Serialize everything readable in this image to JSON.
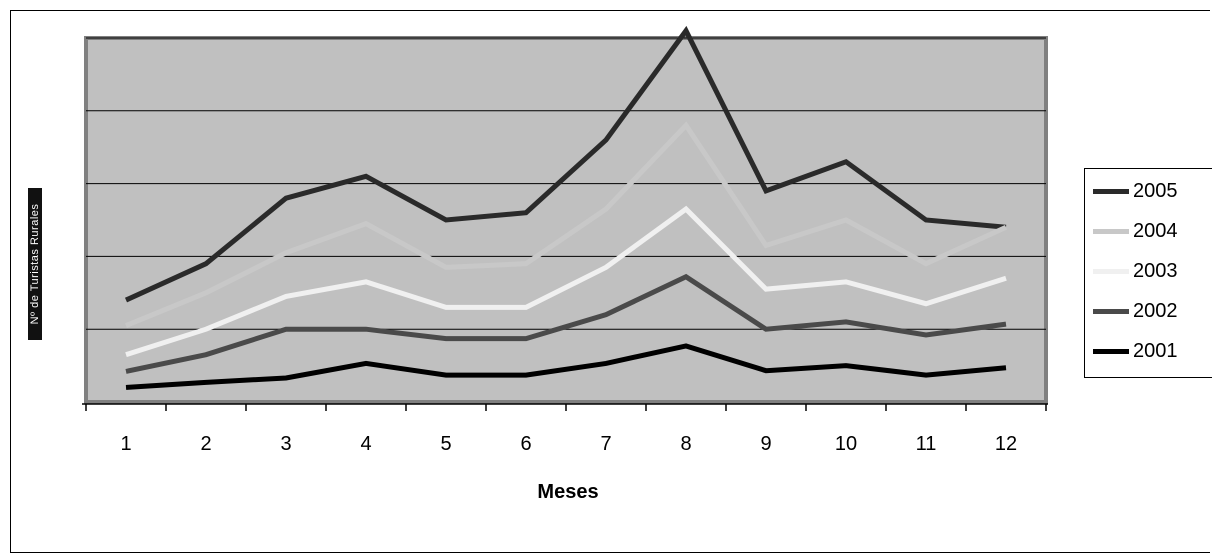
{
  "chart_data": {
    "type": "line",
    "xlabel": "Meses",
    "ylabel": "Nº de Turistas Rurales",
    "categories": [
      "1",
      "2",
      "3",
      "4",
      "5",
      "6",
      "7",
      "8",
      "9",
      "10",
      "11",
      "12"
    ],
    "ylim": [
      0,
      5
    ],
    "grid": true,
    "legend_position": "right",
    "series": [
      {
        "name": "2005",
        "color": "#2a2a2a",
        "values": [
          1.4,
          1.9,
          2.8,
          3.1,
          2.5,
          2.6,
          3.6,
          5.1,
          2.9,
          3.3,
          2.5,
          2.4
        ]
      },
      {
        "name": "2004",
        "color": "#c8c8c8",
        "values": [
          1.05,
          1.5,
          2.05,
          2.45,
          1.85,
          1.9,
          2.65,
          3.8,
          2.15,
          2.5,
          1.9,
          2.4
        ]
      },
      {
        "name": "2003",
        "color": "#f0f0f0",
        "values": [
          0.65,
          1.0,
          1.45,
          1.65,
          1.3,
          1.3,
          1.85,
          2.65,
          1.55,
          1.65,
          1.35,
          1.7
        ]
      },
      {
        "name": "2002",
        "color": "#4a4a4a",
        "values": [
          0.42,
          0.65,
          1.0,
          1.0,
          0.87,
          0.87,
          1.2,
          1.72,
          1.0,
          1.1,
          0.92,
          1.07
        ]
      },
      {
        "name": "2001",
        "color": "#000000",
        "values": [
          0.2,
          0.27,
          0.33,
          0.53,
          0.37,
          0.37,
          0.53,
          0.77,
          0.43,
          0.5,
          0.37,
          0.47
        ]
      }
    ]
  }
}
